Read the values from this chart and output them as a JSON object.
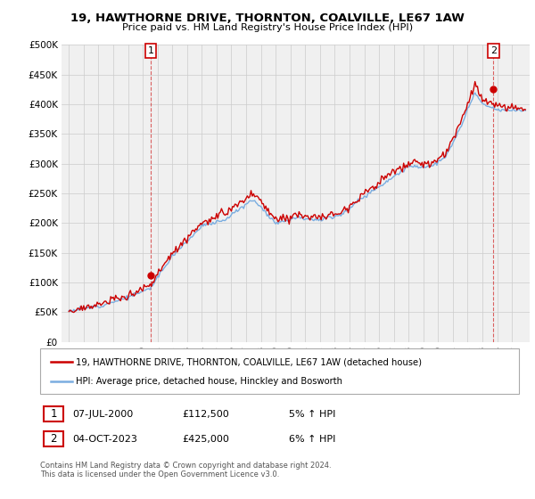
{
  "title": "19, HAWTHORNE DRIVE, THORNTON, COALVILLE, LE67 1AW",
  "subtitle": "Price paid vs. HM Land Registry's House Price Index (HPI)",
  "legend_line1": "19, HAWTHORNE DRIVE, THORNTON, COALVILLE, LE67 1AW (detached house)",
  "legend_line2": "HPI: Average price, detached house, Hinckley and Bosworth",
  "annotation1_date": "07-JUL-2000",
  "annotation1_price": "£112,500",
  "annotation1_hpi": "5% ↑ HPI",
  "annotation2_date": "04-OCT-2023",
  "annotation2_price": "£425,000",
  "annotation2_hpi": "6% ↑ HPI",
  "footer": "Contains HM Land Registry data © Crown copyright and database right 2024.\nThis data is licensed under the Open Government Licence v3.0.",
  "point1_year": 2000.54,
  "point1_value": 112.5,
  "point2_year": 2023.75,
  "point2_value": 425.0,
  "ylim_min": 0,
  "ylim_max": 500,
  "xlim_min": 1994.5,
  "xlim_max": 2026.2,
  "line_color_red": "#cc0000",
  "line_color_blue": "#7aade0",
  "grid_color": "#cccccc",
  "background_color": "#ffffff",
  "plot_bg_color": "#f0f0f0"
}
